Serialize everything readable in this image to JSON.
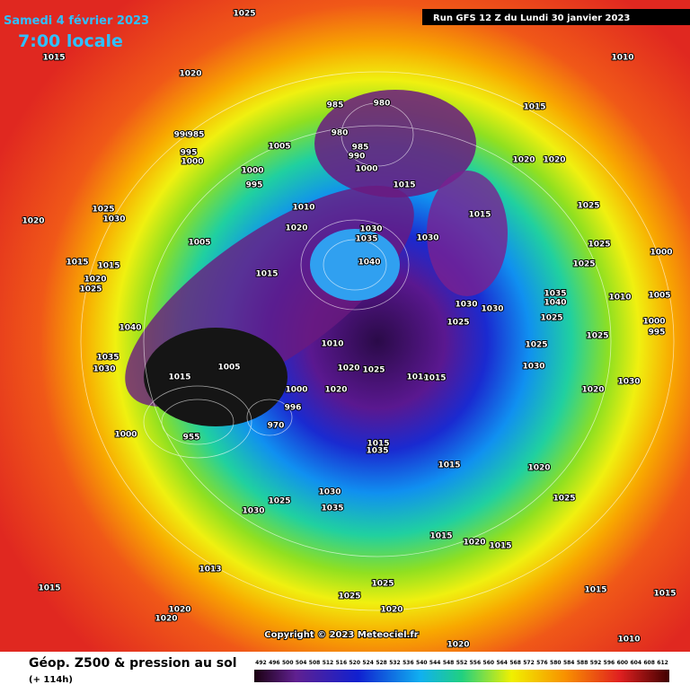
{
  "header": {
    "date": "Samedi 4 février 2023",
    "time": "7:00 locale",
    "run": "Run GFS 12 Z du Lundi 30 janvier 2023"
  },
  "map": {
    "pressure_labels": [
      1025,
      1015,
      1010,
      1020,
      985,
      980,
      1015,
      990,
      985,
      995,
      1000,
      1005,
      980,
      985,
      990,
      1000,
      1020,
      1020,
      1000,
      995,
      1015,
      1025,
      1025,
      1030,
      1010,
      1015,
      1020,
      1020,
      1030,
      1035,
      1030,
      1005,
      1025,
      1040,
      1000,
      1015,
      1015,
      1025,
      1015,
      1020,
      1025,
      1010,
      1005,
      1035,
      1040,
      1030,
      1030,
      1025,
      1025,
      1000,
      995,
      1040,
      1025,
      1010,
      1025,
      1035,
      1005,
      1020,
      1025,
      1030,
      1030,
      1015,
      1010,
      1015,
      1030,
      1000,
      1020,
      1020,
      996,
      970,
      955,
      1000,
      1015,
      1035,
      1015,
      1020,
      1025,
      1025,
      1030,
      1035,
      1030,
      1015,
      1020,
      1015,
      1013,
      1015,
      1025,
      1025,
      1015,
      1015,
      1020,
      1020,
      1020,
      1010,
      1020
    ],
    "copyright": "Copyright © 2023 Meteociel.fr"
  },
  "footer": {
    "title": "Géop. Z500 & pression au sol",
    "lead": "(+ 114h)",
    "scale": [
      492,
      496,
      500,
      504,
      508,
      512,
      516,
      520,
      524,
      528,
      532,
      536,
      540,
      544,
      548,
      552,
      556,
      560,
      564,
      568,
      572,
      576,
      580,
      584,
      588,
      592,
      596,
      600,
      604,
      608,
      612
    ]
  }
}
